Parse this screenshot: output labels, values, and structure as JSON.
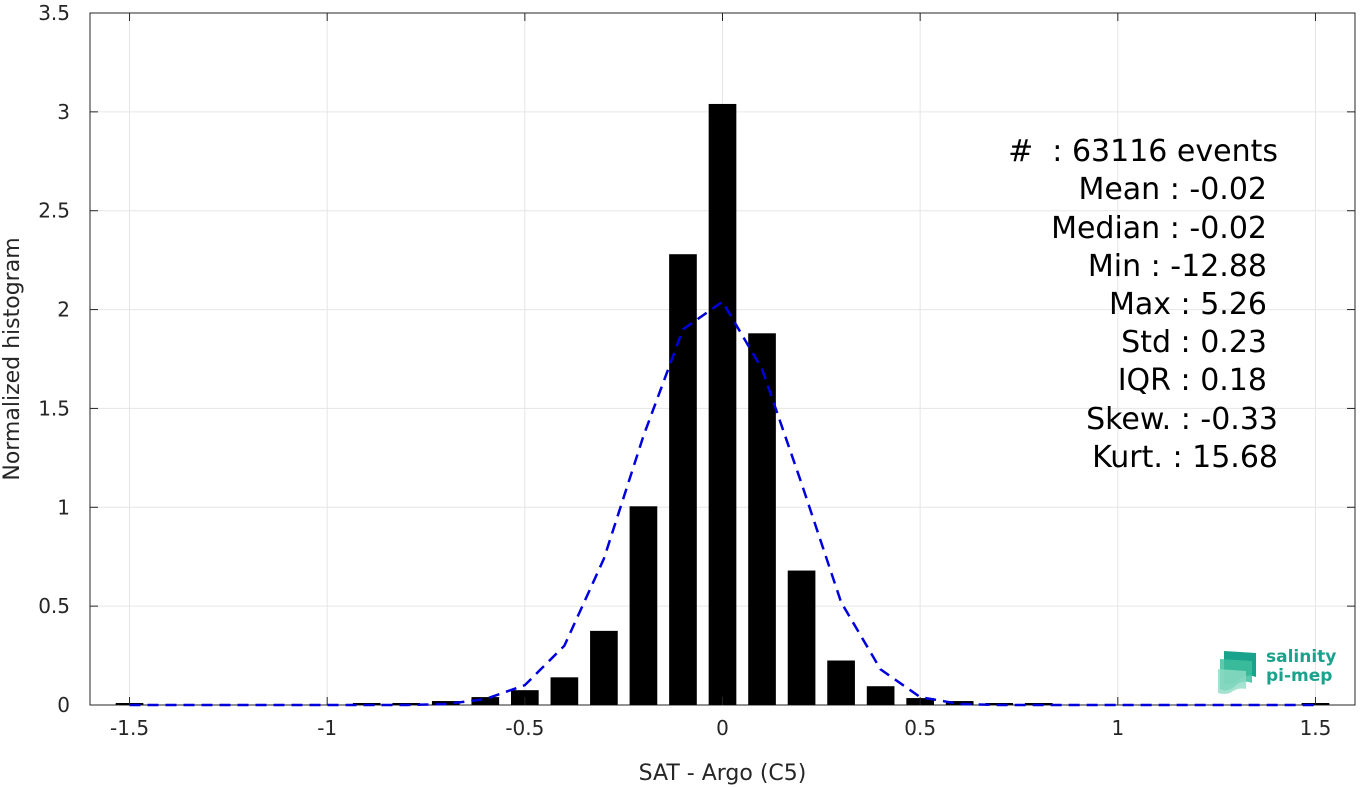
{
  "chart_data": {
    "type": "bar",
    "xlabel": "SAT - Argo (C5)",
    "ylabel": "Normalized histogram",
    "xlim": [
      -1.6,
      1.6
    ],
    "ylim": [
      0,
      3.5
    ],
    "xticks": [
      -1.5,
      -1,
      -0.5,
      0,
      0.5,
      1,
      1.5
    ],
    "xtick_labels": [
      "-1.5",
      "-1",
      "-0.5",
      "0",
      "0.5",
      "1",
      "1.5"
    ],
    "yticks": [
      0,
      0.5,
      1,
      1.5,
      2,
      2.5,
      3,
      3.5
    ],
    "ytick_labels": [
      "0",
      "0.5",
      "1",
      "1.5",
      "2",
      "2.5",
      "3",
      "3.5"
    ],
    "grid": true,
    "bar_width": 0.07,
    "bar_color": "#000000",
    "bars": [
      {
        "x": -1.5,
        "y": 0.01
      },
      {
        "x": -1.4,
        "y": 0.0
      },
      {
        "x": -1.3,
        "y": 0.0
      },
      {
        "x": -1.2,
        "y": 0.0
      },
      {
        "x": -1.1,
        "y": 0.0
      },
      {
        "x": -1.0,
        "y": 0.0
      },
      {
        "x": -0.9,
        "y": 0.005
      },
      {
        "x": -0.8,
        "y": 0.01
      },
      {
        "x": -0.7,
        "y": 0.02
      },
      {
        "x": -0.6,
        "y": 0.04
      },
      {
        "x": -0.5,
        "y": 0.075
      },
      {
        "x": -0.4,
        "y": 0.14
      },
      {
        "x": -0.3,
        "y": 0.375
      },
      {
        "x": -0.2,
        "y": 1.005
      },
      {
        "x": -0.1,
        "y": 2.28
      },
      {
        "x": 0.0,
        "y": 3.04
      },
      {
        "x": 0.1,
        "y": 1.88
      },
      {
        "x": 0.2,
        "y": 0.68
      },
      {
        "x": 0.3,
        "y": 0.225
      },
      {
        "x": 0.4,
        "y": 0.095
      },
      {
        "x": 0.5,
        "y": 0.035
      },
      {
        "x": 0.6,
        "y": 0.02
      },
      {
        "x": 0.7,
        "y": 0.01
      },
      {
        "x": 0.8,
        "y": 0.01
      },
      {
        "x": 0.9,
        "y": 0.0
      },
      {
        "x": 1.0,
        "y": 0.0
      },
      {
        "x": 1.1,
        "y": 0.0
      },
      {
        "x": 1.2,
        "y": 0.0
      },
      {
        "x": 1.3,
        "y": 0.0
      },
      {
        "x": 1.4,
        "y": 0.0
      },
      {
        "x": 1.5,
        "y": 0.005
      }
    ],
    "fit_curve": {
      "style": "dashed",
      "color": "#0000dd",
      "points": [
        [
          -1.5,
          0.0
        ],
        [
          -1.4,
          0.0
        ],
        [
          -1.3,
          0.0
        ],
        [
          -1.2,
          0.0
        ],
        [
          -1.1,
          0.0
        ],
        [
          -1.0,
          0.0
        ],
        [
          -0.9,
          0.0
        ],
        [
          -0.8,
          0.0
        ],
        [
          -0.7,
          0.005
        ],
        [
          -0.6,
          0.03
        ],
        [
          -0.5,
          0.1
        ],
        [
          -0.4,
          0.3
        ],
        [
          -0.3,
          0.74
        ],
        [
          -0.2,
          1.36
        ],
        [
          -0.1,
          1.9
        ],
        [
          0.0,
          2.04
        ],
        [
          0.1,
          1.7
        ],
        [
          0.2,
          1.12
        ],
        [
          0.3,
          0.52
        ],
        [
          0.4,
          0.18
        ],
        [
          0.5,
          0.04
        ],
        [
          0.6,
          0.005
        ],
        [
          0.7,
          0.0
        ],
        [
          0.8,
          0.0
        ],
        [
          0.9,
          0.0
        ],
        [
          1.0,
          0.0
        ],
        [
          1.1,
          0.0
        ],
        [
          1.2,
          0.0
        ],
        [
          1.3,
          0.0
        ],
        [
          1.4,
          0.0
        ],
        [
          1.5,
          0.0
        ]
      ]
    },
    "annotations": [
      "#  : 63116 events",
      "Mean : -0.02",
      "Median : -0.02",
      "Min : -12.88",
      "Max : 5.26",
      "Std : 0.23",
      "IQR : 0.18",
      "Skew. : -0.33",
      "Kurt. : 15.68"
    ]
  },
  "logo": {
    "line1": "salinity",
    "line2": "pi-mep",
    "color": "#1aa38c"
  }
}
